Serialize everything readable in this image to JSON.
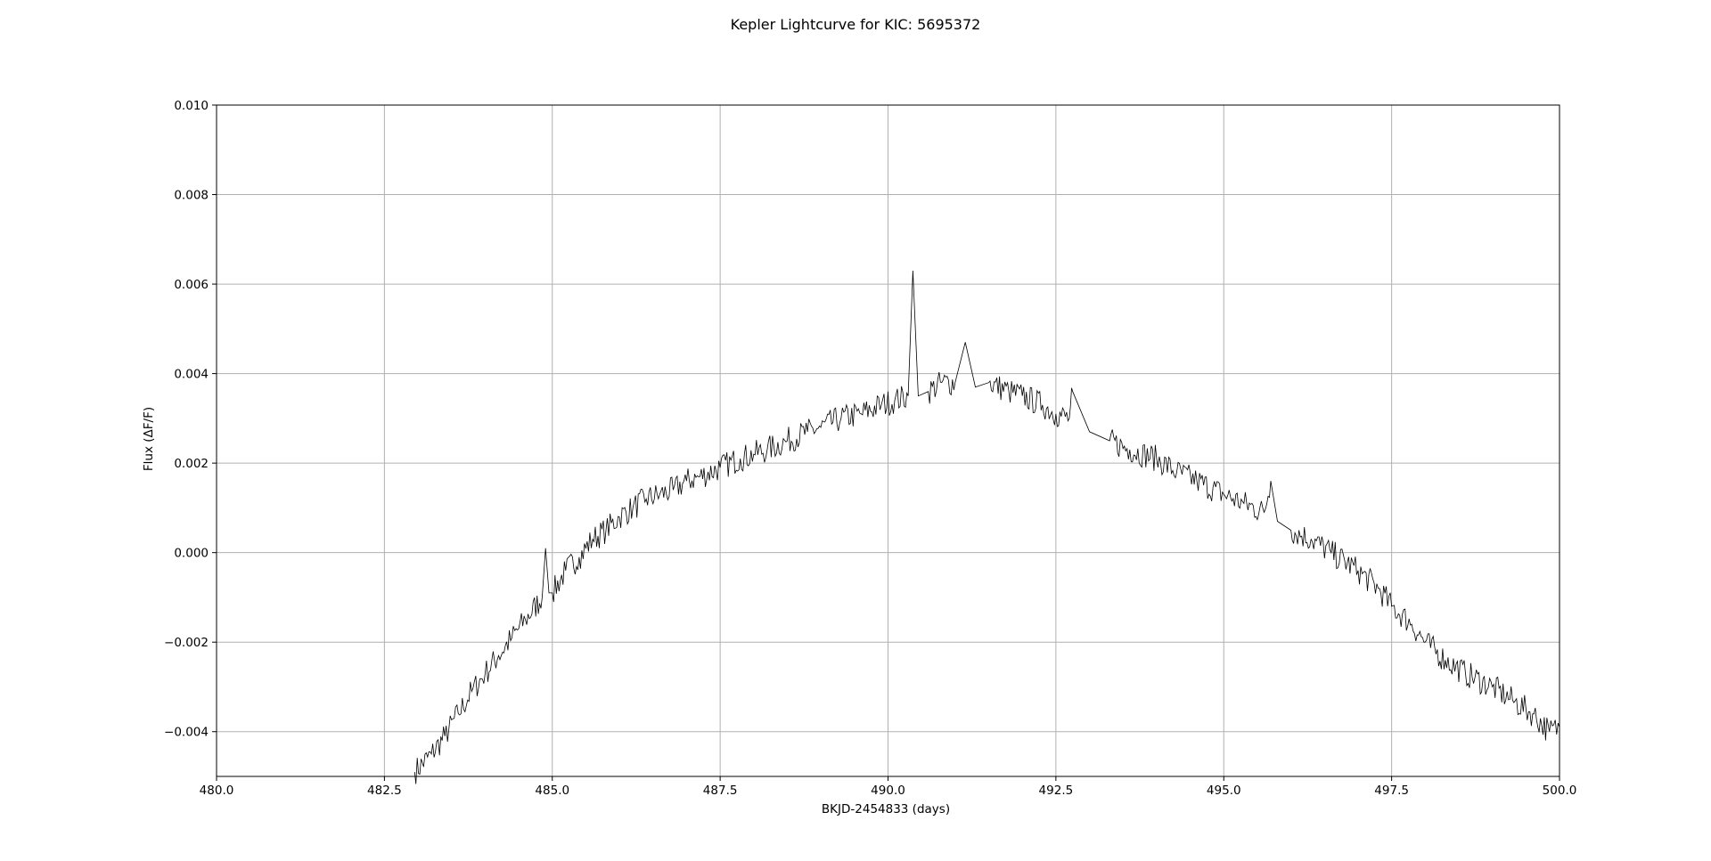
{
  "chart_data": {
    "type": "line",
    "title": "Kepler Lightcurve for KIC: 5695372",
    "xlabel": "BKJD-2454833 (days)",
    "ylabel": "Flux (ΔF/F)",
    "xlim": [
      480.0,
      500.0
    ],
    "ylim": [
      -0.005,
      0.01
    ],
    "x_ticks": [
      480.0,
      482.5,
      485.0,
      487.5,
      490.0,
      492.5,
      495.0,
      497.5,
      500.0
    ],
    "x_tick_labels": [
      "480.0",
      "482.5",
      "485.0",
      "487.5",
      "490.0",
      "492.5",
      "495.0",
      "497.5",
      "500.0"
    ],
    "y_ticks": [
      -0.004,
      -0.002,
      0.0,
      0.002,
      0.004,
      0.006,
      0.008,
      0.01
    ],
    "y_tick_labels": [
      "−0.004",
      "−0.002",
      "0.000",
      "0.002",
      "0.004",
      "0.006",
      "0.008",
      "0.010"
    ],
    "grid": true,
    "line_color": "#000000",
    "grid_color": "#b0b0b0",
    "series": [
      {
        "x": [
          482.95,
          483.2,
          483.4,
          483.6,
          483.8,
          484.0,
          484.2,
          484.4,
          484.6,
          484.85,
          484.9,
          484.95,
          485.0,
          485.2,
          485.4,
          485.6,
          485.8,
          486.0,
          486.2,
          486.4,
          486.6,
          486.8,
          487.0,
          487.2,
          487.5,
          487.8,
          488.0,
          488.2,
          488.5,
          488.8,
          489.0,
          489.3,
          489.6,
          489.9,
          490.1,
          490.3,
          490.37,
          490.45,
          490.6,
          490.8,
          491.0,
          491.15,
          491.3,
          491.5,
          491.8,
          492.0,
          492.3,
          492.5,
          492.7,
          492.75,
          493.0,
          493.3,
          493.6,
          494.0,
          494.3,
          494.6,
          495.0,
          495.3,
          495.6,
          495.7,
          495.8,
          496.0,
          496.3,
          496.6,
          497.0,
          497.3,
          497.5,
          497.8,
          498.0,
          498.3,
          498.6,
          499.0,
          499.3,
          499.6,
          499.85,
          500.0
        ],
        "y": [
          -0.0049,
          -0.0045,
          -0.0041,
          -0.0036,
          -0.0031,
          -0.0027,
          -0.0023,
          -0.0019,
          -0.0015,
          -0.001,
          0.0001,
          -0.0009,
          -0.0009,
          -0.0004,
          -0.0001,
          0.0003,
          0.0005,
          0.0008,
          0.001,
          0.0012,
          0.0013,
          0.0014,
          0.0016,
          0.0017,
          0.0019,
          0.0021,
          0.0022,
          0.0023,
          0.0025,
          0.0027,
          0.0028,
          0.003,
          0.0031,
          0.0033,
          0.0034,
          0.0035,
          0.0063,
          0.0035,
          0.0036,
          0.0038,
          0.0038,
          0.0047,
          0.0037,
          0.0038,
          0.0036,
          0.0035,
          0.0033,
          0.0031,
          0.003,
          0.0036,
          0.0027,
          0.0025,
          0.0023,
          0.0021,
          0.0018,
          0.0016,
          0.0013,
          0.0011,
          0.0009,
          0.0016,
          0.0007,
          0.0005,
          0.0003,
          0.0,
          -0.0004,
          -0.0008,
          -0.0012,
          -0.0016,
          -0.002,
          -0.0024,
          -0.0027,
          -0.003,
          -0.0033,
          -0.0036,
          -0.004,
          -0.0039
        ]
      }
    ]
  }
}
